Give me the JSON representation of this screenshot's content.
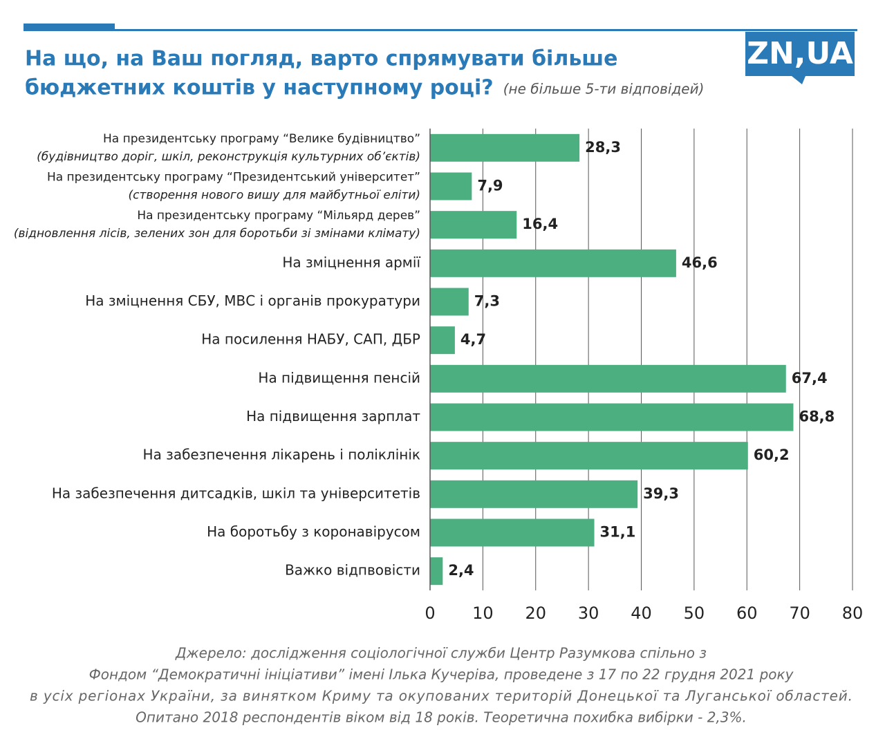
{
  "chart_data": {
    "type": "bar",
    "orientation": "horizontal",
    "title": [
      "На що, на Ваш погляд, варто спрямувати більше",
      "бюджетних коштів у наступному році?"
    ],
    "subtitle": "(не більше 5-ти відповідей)",
    "logo": "ZN,UA",
    "categories": [
      "На президентську програму “Велике будівництво”",
      "На президентську програму “Президентський університет”",
      "На президентську програму “Мільярд дерев”",
      "На зміцнення армії",
      "На зміцнення СБУ, МВС і органів прокуратури",
      "На посилення НАБУ, САП, ДБР",
      "На підвищення пенсій",
      "На підвищення зарплат",
      "На забезпечення лікарень і поліклінік",
      "На забезпечення дитсадків, шкіл та університетів",
      "На боротьбу з коронавірусом",
      "Важко відпвовісти"
    ],
    "category_notes": [
      "(будівництво доріг, шкіл, реконструкція культурних об’єктів)",
      "(створення нового вишу для майбутньої еліти)",
      "(відновлення лісів, зелених зон для боротьби зі змінами клімату)",
      null,
      null,
      null,
      null,
      null,
      null,
      null,
      null,
      null
    ],
    "values": [
      28.3,
      7.9,
      16.4,
      46.6,
      7.3,
      4.7,
      67.4,
      68.8,
      60.2,
      39.3,
      31.1,
      2.4
    ],
    "value_labels": [
      "28,3",
      "7,9",
      "16,4",
      "46,6",
      "7,3",
      "4,7",
      "67,4",
      "68,8",
      "60,2",
      "39,3",
      "31,1",
      "2,4"
    ],
    "color": "#4caf80",
    "xlim": [
      0,
      80
    ],
    "xticks": [
      0,
      10,
      20,
      30,
      40,
      50,
      60,
      70,
      80
    ],
    "grid": true,
    "source_lines": [
      "Джерело: дослідження соціологічної служби Центр Разумкова спільно з",
      "Фондом “Демократичні ініціативи” імені Ілька Кучеріва, проведене з 17 по 22 грудня 2021 року",
      "в усіх регіонах України, за винятком Криму та окупованих територій Донецької та Луганської областей.",
      "Опитано 2018 респондентів віком від 18 років. Теоретична похибка вибірки - 2,3%."
    ]
  }
}
